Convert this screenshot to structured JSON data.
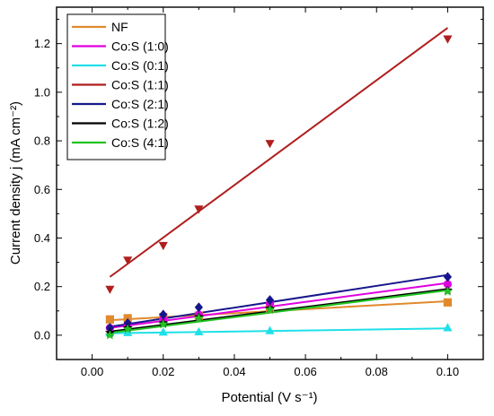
{
  "chart_data": {
    "type": "scatter",
    "xlabel": "Potential (V s⁻¹)",
    "ylabel": "Current density j (mA cm⁻²)",
    "xlim": [
      -0.01,
      0.11
    ],
    "ylim": [
      -0.1,
      1.35
    ],
    "xticks": [
      0.0,
      0.02,
      0.04,
      0.06,
      0.08,
      0.1
    ],
    "yticks": [
      0.0,
      0.2,
      0.4,
      0.6,
      0.8,
      1.0,
      1.2
    ],
    "xtick_labels": [
      "0.00",
      "0.02",
      "0.04",
      "0.06",
      "0.08",
      "0.10"
    ],
    "ytick_labels": [
      "0.0",
      "0.2",
      "0.4",
      "0.6",
      "0.8",
      "1.0",
      "1.2"
    ],
    "grid": false,
    "legend_position": "top-left",
    "series": [
      {
        "name": "NF",
        "color": "#E08A2C",
        "marker": "square",
        "x": [
          0.005,
          0.01,
          0.02,
          0.03,
          0.05,
          0.1
        ],
        "y": [
          0.065,
          0.07,
          0.075,
          0.08,
          0.11,
          0.135
        ],
        "fit": [
          [
            0.005,
            0.062
          ],
          [
            0.1,
            0.14
          ]
        ]
      },
      {
        "name": "Co:S (1:0)",
        "color": "#E000E0",
        "marker": "circle",
        "x": [
          0.005,
          0.01,
          0.02,
          0.03,
          0.05,
          0.1
        ],
        "y": [
          0.03,
          0.045,
          0.065,
          0.085,
          0.13,
          0.21
        ],
        "fit": [
          [
            0.005,
            0.03
          ],
          [
            0.1,
            0.215
          ]
        ]
      },
      {
        "name": "Co:S (0:1)",
        "color": "#1FE0E8",
        "marker": "triangle-up",
        "x": [
          0.005,
          0.01,
          0.02,
          0.03,
          0.05,
          0.1
        ],
        "y": [
          0.01,
          0.01,
          0.012,
          0.013,
          0.018,
          0.03
        ],
        "fit": [
          [
            0.005,
            0.008
          ],
          [
            0.1,
            0.028
          ]
        ]
      },
      {
        "name": "Co:S (1:1)",
        "color": "#B01E1E",
        "marker": "triangle-down",
        "x": [
          0.005,
          0.01,
          0.02,
          0.03,
          0.05,
          0.1
        ],
        "y": [
          0.19,
          0.31,
          0.37,
          0.52,
          0.79,
          1.22
        ],
        "fit": [
          [
            0.005,
            0.24
          ],
          [
            0.1,
            1.265
          ]
        ]
      },
      {
        "name": "Co:S (2:1)",
        "color": "#16168C",
        "marker": "diamond",
        "x": [
          0.005,
          0.01,
          0.02,
          0.03,
          0.05,
          0.1
        ],
        "y": [
          0.03,
          0.05,
          0.085,
          0.115,
          0.145,
          0.24
        ],
        "fit": [
          [
            0.005,
            0.035
          ],
          [
            0.1,
            0.248
          ]
        ]
      },
      {
        "name": "Co:S (1:2)",
        "color": "#000000",
        "marker": "star",
        "x": [
          0.005,
          0.01,
          0.02,
          0.03,
          0.05,
          0.1
        ],
        "y": [
          0.01,
          0.03,
          0.05,
          0.075,
          0.11,
          0.185
        ],
        "fit": [
          [
            0.005,
            0.015
          ],
          [
            0.1,
            0.19
          ]
        ]
      },
      {
        "name": "Co:S (4:1)",
        "color": "#22C322",
        "marker": "star",
        "x": [
          0.005,
          0.01,
          0.02,
          0.03,
          0.05,
          0.1
        ],
        "y": [
          0.0,
          0.025,
          0.045,
          0.07,
          0.105,
          0.18
        ],
        "fit": [
          [
            0.005,
            0.01
          ],
          [
            0.1,
            0.185
          ]
        ]
      }
    ]
  }
}
